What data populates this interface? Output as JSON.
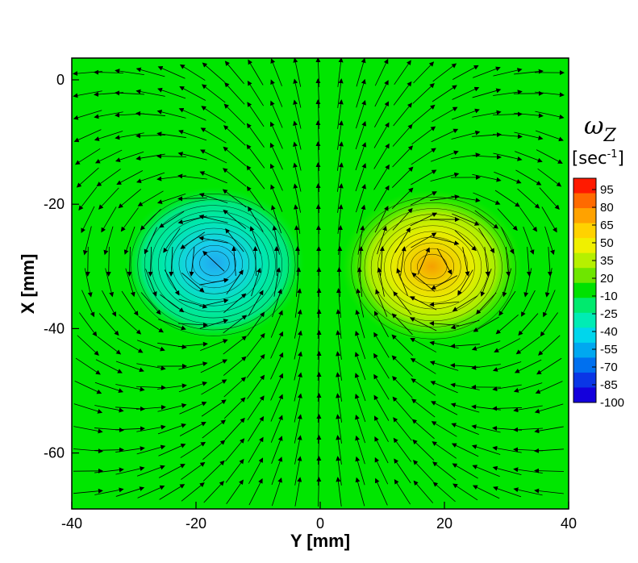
{
  "chart_data": {
    "type": "contour",
    "xlabel": "Y [mm]",
    "ylabel": "X [mm]",
    "xlim": [
      -40,
      40
    ],
    "ylim": [
      -69,
      3.5
    ],
    "xticks": [
      -40,
      -20,
      0,
      20,
      40
    ],
    "yticks": [
      0,
      -20,
      -40,
      -60
    ],
    "field": "vorticity",
    "background_value": 0,
    "vortices": [
      {
        "y": -17,
        "x": -29.5,
        "peak": -55
      },
      {
        "y": 18,
        "x": -30,
        "peak": 70
      }
    ],
    "vector_field": "velocity arrows (counter-rotating vortex pair, downward jet between vortices)",
    "grid": false,
    "legend_position": "right",
    "colorbar": {
      "title": "ω",
      "title_subscript": "Z",
      "unit": "[sec",
      "unit_superscript": "-1",
      "unit_close": "]",
      "range": [
        -100,
        100
      ],
      "labels": [
        "95",
        "80",
        "65",
        "50",
        "35",
        "20",
        "-10",
        "-25",
        "-40",
        "-55",
        "-70",
        "-85",
        "-100"
      ],
      "colors": [
        "#ff1a00",
        "#ff6a00",
        "#ffa200",
        "#ffd200",
        "#f0f000",
        "#b6f000",
        "#6ee600",
        "#00e100",
        "#00ea6e",
        "#00ecb4",
        "#00d6ec",
        "#00a8f0",
        "#0070ef",
        "#0a36e6",
        "#1400dc"
      ]
    }
  }
}
